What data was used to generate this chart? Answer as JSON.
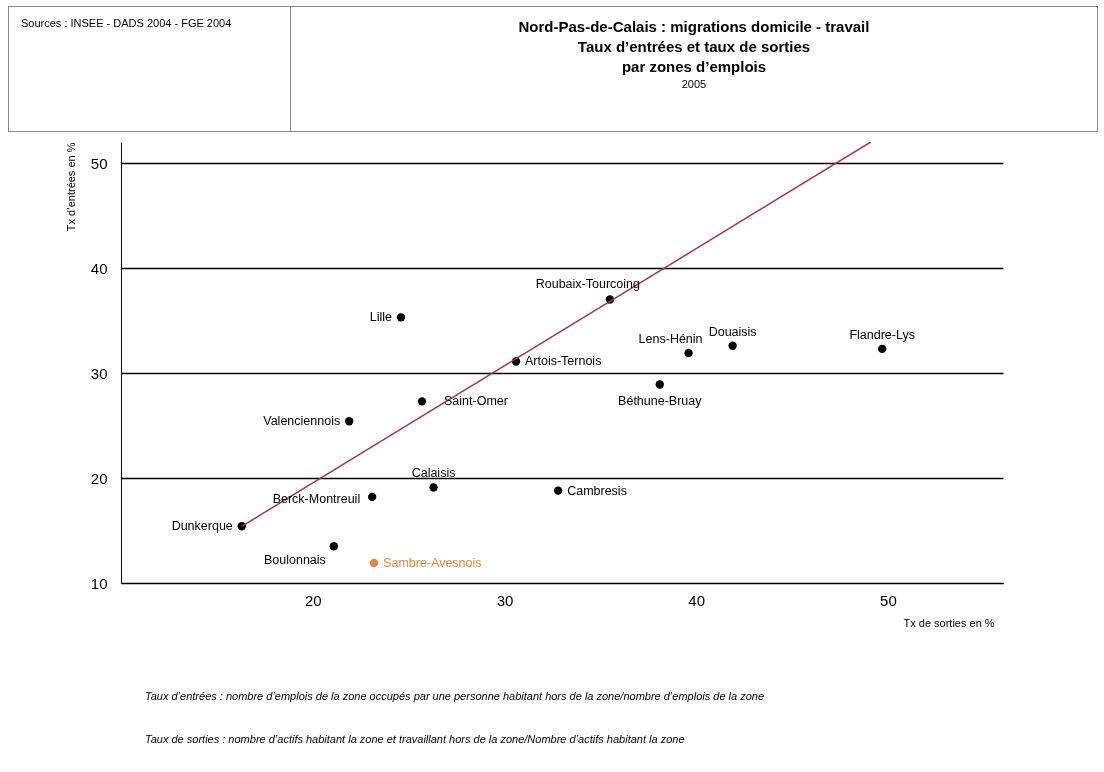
{
  "chart_data": {
    "type": "scatter",
    "title": "Nord-Pas-de-Calais : migrations domicile - travail",
    "subtitle": "Taux d’entrées et taux de sorties\npar zones d’emplois\n2005",
    "xlabel": "Tx de sorties en %",
    "ylabel": "Tx d’entrées en %",
    "annotations": [
      "Sources : INSEE - DADS 2004 - FGE 2004",
      "Taux d’entrées : nombre d’emplois de la zone occupés par une personne habitant hors de la zone/nombre d’emplois de la zone",
      "Taux de sorties : nombre d’actifs habitant la zone et travaillant hors de la zone/Nombre d’actifs habitant la zone"
    ],
    "xlim": [
      10,
      56
    ],
    "ylim": [
      10,
      52
    ],
    "xticks": [
      20,
      30,
      40,
      50
    ],
    "yticks": [
      10,
      20,
      30,
      40,
      50
    ],
    "grid": "y",
    "marker": "circle",
    "series": [
      {
        "name": "Dunkerque",
        "color": "#000000",
        "x": [
          16.3
        ],
        "values": [
          15.4
        ]
      },
      {
        "name": "Boulonnais",
        "color": "#000000",
        "x": [
          21.1
        ],
        "values": [
          13.5
        ]
      },
      {
        "name": "Sambre-Avesnois",
        "color": "#e08a3c",
        "x": [
          23.2
        ],
        "values": [
          11.9
        ]
      },
      {
        "name": "Berck-Montreuil",
        "color": "#000000",
        "x": [
          23.1
        ],
        "values": [
          18.2
        ]
      },
      {
        "name": "Calaisis",
        "color": "#000000",
        "x": [
          26.3
        ],
        "values": [
          19.1
        ]
      },
      {
        "name": "Cambresis",
        "color": "#000000",
        "x": [
          32.8
        ],
        "values": [
          18.8
        ]
      },
      {
        "name": "Valenciennois",
        "color": "#000000",
        "x": [
          21.9
        ],
        "values": [
          25.4
        ]
      },
      {
        "name": "Saint-Omer",
        "color": "#000000",
        "x": [
          25.7
        ],
        "values": [
          27.3
        ]
      },
      {
        "name": "Lille",
        "color": "#000000",
        "x": [
          24.6
        ],
        "values": [
          35.3
        ]
      },
      {
        "name": "Artois-Ternois",
        "color": "#000000",
        "x": [
          30.6
        ],
        "values": [
          31.1
        ]
      },
      {
        "name": "Roubaix-Tourcoing",
        "color": "#000000",
        "x": [
          35.5
        ],
        "values": [
          37.0
        ]
      },
      {
        "name": "Lens-Hénin",
        "color": "#000000",
        "x": [
          39.6
        ],
        "values": [
          31.9
        ]
      },
      {
        "name": "Douaisis",
        "color": "#000000",
        "x": [
          41.9
        ],
        "values": [
          32.6
        ]
      },
      {
        "name": "Béthune-Bruay",
        "color": "#000000",
        "x": [
          38.1
        ],
        "values": [
          28.9
        ]
      },
      {
        "name": "Flandre-Lys",
        "color": "#000000",
        "x": [
          49.7
        ],
        "values": [
          32.3
        ]
      },
      {
        "type": "line",
        "color": "#a8325a",
        "marker": "none",
        "x": [
          16.3,
          49.1
        ],
        "values": [
          15.4,
          52
        ]
      }
    ]
  }
}
